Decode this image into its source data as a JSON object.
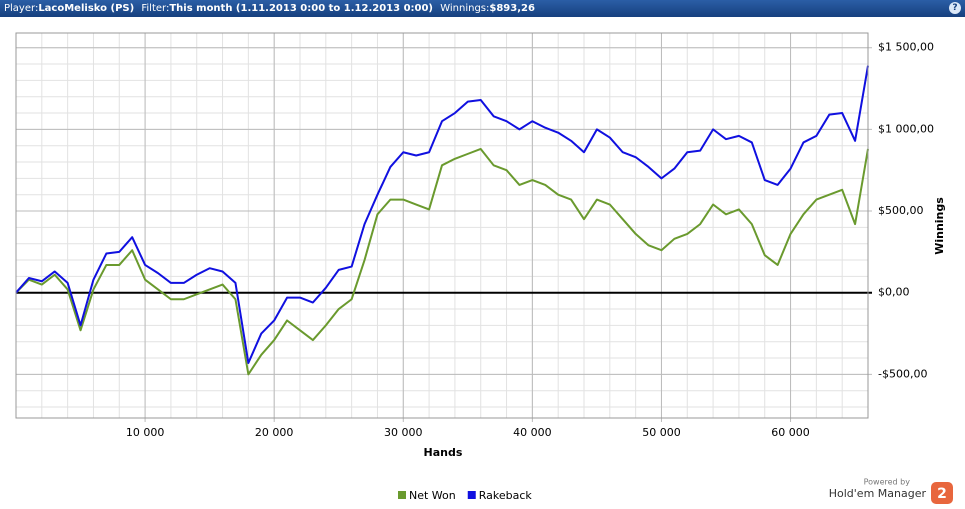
{
  "header": {
    "player_label": "Player:",
    "player": "LacoMelisko (PS)",
    "filter_label": "Filter:",
    "filter": "This month (1.11.2013 0:00 to 1.12.2013 0:00)",
    "winnings_label": "Winnings:",
    "winnings": "$893,26",
    "help": "?"
  },
  "branding": {
    "powered": "Powered by",
    "product": "Hold'em Manager",
    "version": "2"
  },
  "chart_data": {
    "type": "line",
    "x_label": "Hands",
    "y_label": "Winnings",
    "x": [
      0,
      1000,
      2000,
      3000,
      4000,
      5000,
      6000,
      7000,
      8000,
      9000,
      10000,
      11000,
      12000,
      13000,
      14000,
      15000,
      16000,
      17000,
      18000,
      19000,
      20000,
      21000,
      22000,
      23000,
      24000,
      25000,
      26000,
      27000,
      28000,
      29000,
      30000,
      31000,
      32000,
      33000,
      34000,
      35000,
      36000,
      37000,
      38000,
      39000,
      40000,
      41000,
      42000,
      43000,
      44000,
      45000,
      46000,
      47000,
      48000,
      49000,
      50000,
      51000,
      52000,
      53000,
      54000,
      55000,
      56000,
      57000,
      58000,
      59000,
      60000,
      61000,
      62000,
      63000,
      64000,
      65000,
      66000
    ],
    "series": [
      {
        "name": "Net Won",
        "color": "#6a9a2e",
        "values": [
          0,
          80,
          50,
          110,
          20,
          -230,
          20,
          170,
          170,
          260,
          80,
          20,
          -40,
          -40,
          -10,
          20,
          50,
          -40,
          -500,
          -380,
          -290,
          -170,
          -230,
          -290,
          -200,
          -100,
          -40,
          200,
          480,
          570,
          570,
          540,
          510,
          780,
          820,
          850,
          880,
          780,
          750,
          660,
          690,
          660,
          600,
          570,
          450,
          570,
          540,
          450,
          360,
          290,
          260,
          330,
          360,
          420,
          540,
          480,
          510,
          420,
          230,
          170,
          360,
          480,
          570,
          600,
          630,
          420,
          880
        ]
      },
      {
        "name": "Rakeback",
        "color": "#1010e0",
        "values": [
          0,
          90,
          70,
          130,
          60,
          -200,
          80,
          240,
          250,
          340,
          170,
          120,
          60,
          60,
          110,
          150,
          130,
          60,
          -430,
          -250,
          -170,
          -30,
          -30,
          -60,
          30,
          140,
          160,
          420,
          600,
          770,
          860,
          840,
          860,
          1050,
          1100,
          1170,
          1180,
          1080,
          1050,
          1000,
          1050,
          1010,
          980,
          930,
          860,
          1000,
          950,
          860,
          830,
          770,
          700,
          760,
          860,
          870,
          1000,
          940,
          960,
          920,
          690,
          660,
          760,
          920,
          960,
          1090,
          1100,
          930,
          1390
        ]
      }
    ],
    "xlim": [
      0,
      66000
    ],
    "ylim": [
      -767,
      1590
    ],
    "xticks": [
      {
        "value": 10000,
        "label": "10 000"
      },
      {
        "value": 20000,
        "label": "20 000"
      },
      {
        "value": 30000,
        "label": "30 000"
      },
      {
        "value": 40000,
        "label": "40 000"
      },
      {
        "value": 50000,
        "label": "50 000"
      },
      {
        "value": 60000,
        "label": "60 000"
      }
    ],
    "yticks": [
      {
        "value": -500,
        "label": "-$500,00"
      },
      {
        "value": 0,
        "label": "$0,00"
      },
      {
        "value": 500,
        "label": "$500,00"
      },
      {
        "value": 1000,
        "label": "$1 000,00"
      },
      {
        "value": 1500,
        "label": "$1 500,00"
      }
    ],
    "grid": true,
    "zero_line_color": "#000000"
  }
}
